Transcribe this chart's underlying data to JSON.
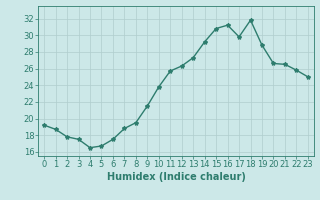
{
  "x": [
    0,
    1,
    2,
    3,
    4,
    5,
    6,
    7,
    8,
    9,
    10,
    11,
    12,
    13,
    14,
    15,
    16,
    17,
    18,
    19,
    20,
    21,
    22,
    23
  ],
  "y": [
    19.2,
    18.7,
    17.8,
    17.5,
    16.5,
    16.7,
    17.5,
    18.8,
    19.5,
    21.5,
    23.8,
    25.7,
    26.3,
    27.3,
    29.2,
    30.8,
    31.2,
    29.8,
    31.8,
    28.8,
    26.6,
    26.5,
    25.8,
    25.0
  ],
  "line_color": "#2e7d6e",
  "bg_color": "#cce8e8",
  "grid_color": "#b0cece",
  "xlabel": "Humidex (Indice chaleur)",
  "ylim": [
    15.5,
    33.5
  ],
  "xlim": [
    -0.5,
    23.5
  ],
  "yticks": [
    16,
    18,
    20,
    22,
    24,
    26,
    28,
    30,
    32
  ],
  "xticks": [
    0,
    1,
    2,
    3,
    4,
    5,
    6,
    7,
    8,
    9,
    10,
    11,
    12,
    13,
    14,
    15,
    16,
    17,
    18,
    19,
    20,
    21,
    22,
    23
  ],
  "marker": "*",
  "marker_size": 3,
  "linewidth": 1.0,
  "fontsize_tick": 6,
  "fontsize_label": 7
}
